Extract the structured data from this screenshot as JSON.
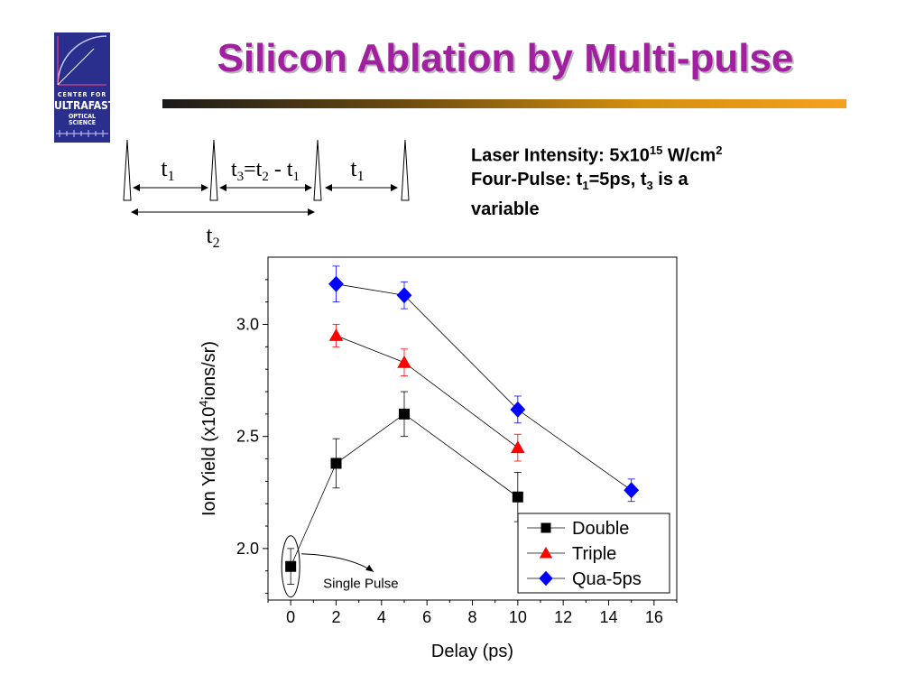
{
  "slide": {
    "title": "Silicon Ablation by Multi-pulse",
    "logo": {
      "line1": "CENTER FOR",
      "line2": "ULTRAFAST",
      "line3": "OPTICAL SCIENCE"
    },
    "info": {
      "line1_prefix": "Laser Intensity: 5x10",
      "line1_exp": "15",
      "line1_unit": " W/cm",
      "line1_unit_exp": "2",
      "line2_prefix": "Four-Pulse: t",
      "line2_sub1": "1",
      "line2_mid": "=5ps, t",
      "line2_sub3": "3",
      "line2_suffix": " is a",
      "line3": "variable"
    }
  },
  "pulse_diagram": {
    "label_t1_left": "t1",
    "label_t3": "t3=t2 - t1",
    "label_t1_right": "t1",
    "label_t2": "t2"
  },
  "chart_data": {
    "type": "scatter",
    "title": "",
    "xlabel": "Delay (ps)",
    "ylabel": "Ion Yield (x10^4ions/sr)",
    "xlim": [
      -1,
      17
    ],
    "ylim": [
      1.77,
      3.3
    ],
    "xticks": [
      0,
      2,
      4,
      6,
      8,
      10,
      12,
      14,
      16
    ],
    "yticks": [
      2.0,
      2.5,
      3.0
    ],
    "legend_position": "bottom-right",
    "annotation": "Single Pulse",
    "series": [
      {
        "name": "Double",
        "marker": "square",
        "color": "#000000",
        "x": [
          0,
          2,
          5,
          10
        ],
        "y": [
          1.92,
          2.38,
          2.6,
          2.23
        ],
        "err": [
          0.08,
          0.11,
          0.1,
          0.11
        ]
      },
      {
        "name": "Triple",
        "marker": "triangle",
        "color": "#ff0000",
        "x": [
          2,
          5,
          10
        ],
        "y": [
          2.95,
          2.83,
          2.45
        ],
        "err": [
          0.05,
          0.06,
          0.06
        ]
      },
      {
        "name": "Qua-5ps",
        "marker": "diamond",
        "color": "#0000ff",
        "x": [
          2,
          5,
          10,
          15
        ],
        "y": [
          3.18,
          3.13,
          2.62,
          2.26
        ],
        "err": [
          0.08,
          0.06,
          0.06,
          0.05
        ]
      }
    ]
  }
}
